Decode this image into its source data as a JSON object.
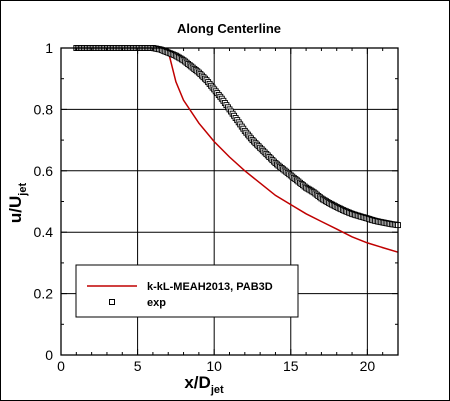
{
  "chart_data": {
    "type": "line",
    "title": "Along Centerline",
    "xlabel": {
      "main": "x/D",
      "sub": "jet"
    },
    "ylabel": {
      "main": "u/U",
      "sub": "jet"
    },
    "xlim": [
      0,
      22
    ],
    "ylim": [
      0,
      1
    ],
    "xticks": [
      "0",
      "5",
      "10",
      "15",
      "20"
    ],
    "yticks": [
      "0",
      "0.2",
      "0.4",
      "0.6",
      "0.8",
      "1"
    ],
    "xtick_values": [
      0,
      5,
      10,
      15,
      20
    ],
    "ytick_values": [
      0,
      0.2,
      0.4,
      0.6,
      0.8,
      1.0
    ],
    "grid": true,
    "legend_position": "lower-left",
    "series": [
      {
        "name": "k-kL-MEAH2013, PAB3D",
        "style": "line",
        "color": "#c00000",
        "x": [
          1,
          3,
          5,
          6,
          6.5,
          7,
          7.2,
          7.5,
          8,
          9,
          10,
          11,
          12,
          13,
          14,
          15,
          16,
          17,
          18,
          19,
          20,
          21,
          22
        ],
        "y": [
          0.995,
          0.995,
          0.995,
          0.995,
          0.994,
          0.99,
          0.95,
          0.89,
          0.83,
          0.755,
          0.695,
          0.645,
          0.6,
          0.56,
          0.52,
          0.49,
          0.46,
          0.435,
          0.41,
          0.385,
          0.365,
          0.35,
          0.335
        ]
      },
      {
        "name": "exp",
        "style": "markers",
        "marker": "square",
        "color": "#000000",
        "x": [
          1,
          2,
          3,
          4,
          5,
          6,
          6.5,
          7,
          7.5,
          8,
          8.5,
          9,
          9.5,
          10,
          10.5,
          11,
          11.5,
          12,
          12.5,
          13,
          13.5,
          14,
          14.5,
          15,
          15.5,
          16,
          16.5,
          17,
          17.5,
          18,
          18.5,
          19,
          19.5,
          20,
          20.5,
          21,
          21.5,
          22
        ],
        "y": [
          1.0,
          1.0,
          1.0,
          1.0,
          1.0,
          1.0,
          0.995,
          0.985,
          0.975,
          0.96,
          0.94,
          0.92,
          0.895,
          0.865,
          0.835,
          0.8,
          0.765,
          0.73,
          0.7,
          0.675,
          0.65,
          0.625,
          0.605,
          0.585,
          0.565,
          0.545,
          0.53,
          0.51,
          0.495,
          0.482,
          0.47,
          0.46,
          0.452,
          0.445,
          0.437,
          0.432,
          0.427,
          0.423
        ]
      }
    ]
  }
}
